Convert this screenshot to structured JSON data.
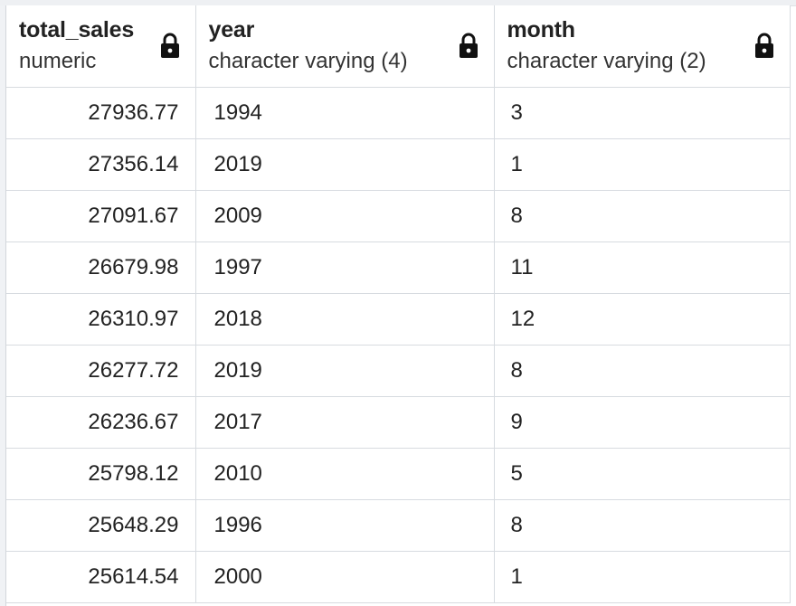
{
  "columns": [
    {
      "name": "total_sales",
      "type": "numeric",
      "icon": "lock-icon"
    },
    {
      "name": "year",
      "type": "character varying (4)",
      "icon": "lock-icon"
    },
    {
      "name": "month",
      "type": "character varying (2)",
      "icon": "lock-icon"
    }
  ],
  "rows": [
    {
      "total_sales": "27936.77",
      "year": "1994",
      "month": "3"
    },
    {
      "total_sales": "27356.14",
      "year": "2019",
      "month": "1"
    },
    {
      "total_sales": "27091.67",
      "year": "2009",
      "month": "8"
    },
    {
      "total_sales": "26679.98",
      "year": "1997",
      "month": "11"
    },
    {
      "total_sales": "26310.97",
      "year": "2018",
      "month": "12"
    },
    {
      "total_sales": "26277.72",
      "year": "2019",
      "month": "8"
    },
    {
      "total_sales": "26236.67",
      "year": "2017",
      "month": "9"
    },
    {
      "total_sales": "25798.12",
      "year": "2010",
      "month": "5"
    },
    {
      "total_sales": "25648.29",
      "year": "1996",
      "month": "8"
    },
    {
      "total_sales": "25614.54",
      "year": "2000",
      "month": "1"
    }
  ]
}
